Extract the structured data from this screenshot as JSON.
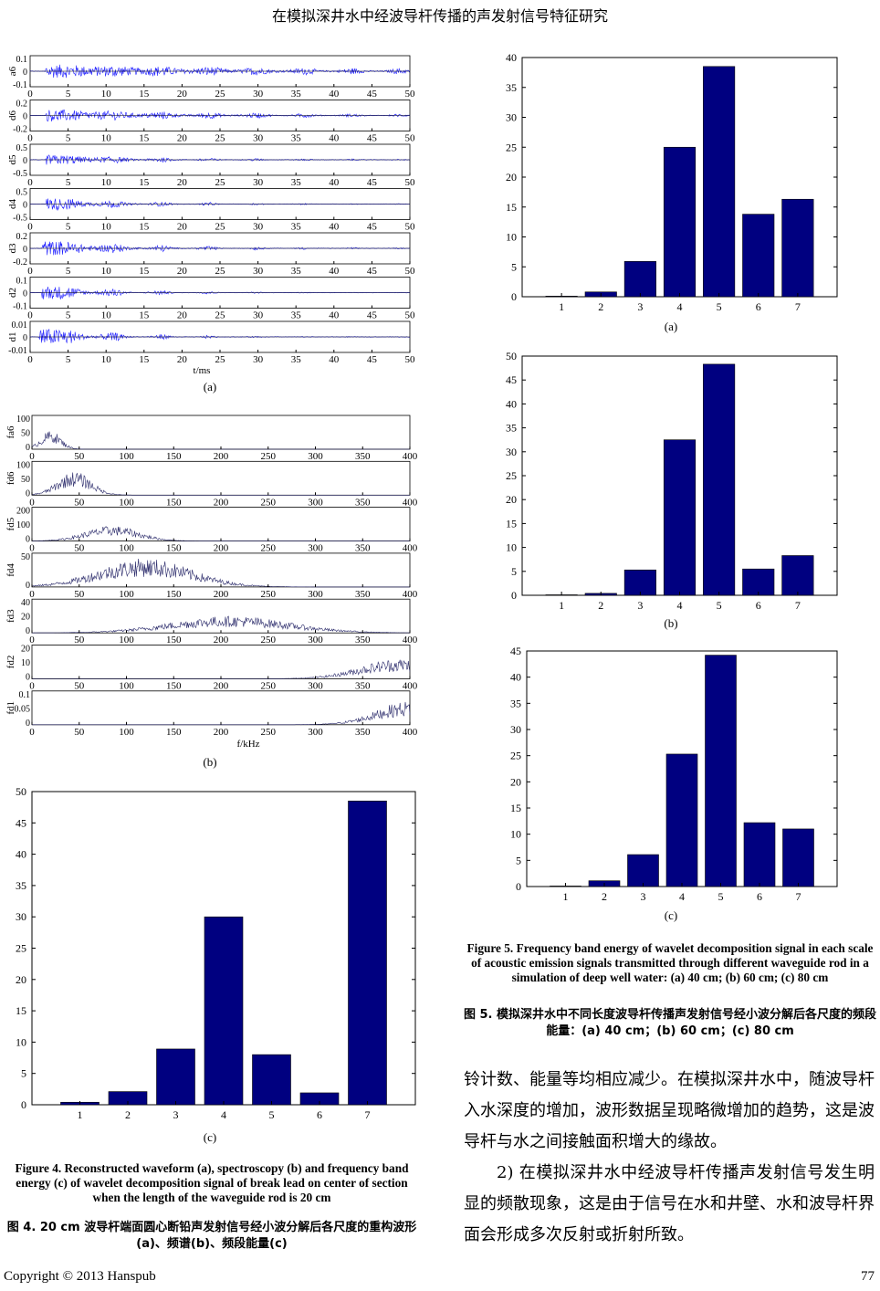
{
  "header": {
    "title": "在模拟深井水中经波导杆传播的声发射信号特征研究"
  },
  "footer": {
    "copyright": "Copyright © 2013 Hanspub",
    "page_number": "77"
  },
  "figure4": {
    "panel_a": {
      "label": "(a)",
      "xlabel": "t/ms",
      "x_ticks": [
        "0",
        "5",
        "10",
        "15",
        "20",
        "25",
        "30",
        "35",
        "40",
        "45",
        "50"
      ],
      "rows": [
        {
          "name": "a6",
          "ticks": [
            "0.1",
            "0",
            "-0.1"
          ],
          "amp": 0.45,
          "decay": 0.04,
          "start": 2
        },
        {
          "name": "d6",
          "ticks": [
            "0.2",
            "0",
            "-0.2"
          ],
          "amp": 0.4,
          "decay": 0.06,
          "start": 2
        },
        {
          "name": "d5",
          "ticks": [
            "0.5",
            "0",
            "-0.5"
          ],
          "amp": 0.35,
          "decay": 0.1,
          "start": 2
        },
        {
          "name": "d4",
          "ticks": [
            "0.5",
            "0",
            "-0.5"
          ],
          "amp": 0.45,
          "decay": 0.14,
          "start": 2
        },
        {
          "name": "d3",
          "ticks": [
            "0.2",
            "0",
            "-0.2"
          ],
          "amp": 0.55,
          "decay": 0.12,
          "start": 1.5
        },
        {
          "name": "d2",
          "ticks": [
            "0.1",
            "0",
            "-0.1"
          ],
          "amp": 0.55,
          "decay": 0.16,
          "start": 1.5
        },
        {
          "name": "d1",
          "ticks": [
            "0.01",
            "0",
            "-0.01"
          ],
          "amp": 0.7,
          "decay": 0.18,
          "start": 1.2
        }
      ]
    },
    "panel_b": {
      "label": "(b)",
      "xlabel": "f/kHz",
      "x_ticks": [
        "0",
        "50",
        "100",
        "150",
        "200",
        "250",
        "300",
        "350",
        "400"
      ],
      "rows": [
        {
          "name": "fa6",
          "ticks": [
            "100",
            "50",
            "0"
          ],
          "center": 20,
          "width": 15,
          "peak": 0.55
        },
        {
          "name": "fd6",
          "ticks": [
            "100",
            "50",
            "0"
          ],
          "center": 45,
          "width": 25,
          "peak": 0.7
        },
        {
          "name": "fd5",
          "ticks": [
            "200",
            "100",
            "0"
          ],
          "center": 85,
          "width": 40,
          "peak": 0.45
        },
        {
          "name": "fd4",
          "ticks": [
            "50",
            "0"
          ],
          "center": 120,
          "width": 70,
          "peak": 0.85
        },
        {
          "name": "fd3",
          "ticks": [
            "40",
            "20",
            "0"
          ],
          "center": 210,
          "width": 90,
          "peak": 0.5
        },
        {
          "name": "fd2",
          "ticks": [
            "20",
            "10",
            "0"
          ],
          "center": 390,
          "width": 60,
          "peak": 0.6
        },
        {
          "name": "fd1",
          "ticks": [
            "0.1",
            "0.05",
            "0"
          ],
          "center": 400,
          "width": 50,
          "peak": 0.7
        }
      ]
    },
    "panel_c": {
      "label": "(c)"
    },
    "caption_en": "Figure 4. Reconstructed waveform (a), spectroscopy (b) and frequency band energy (c) of wavelet decomposition signal of break lead on center of section when the length of the waveguide rod is 20 cm",
    "caption_zh": "图 4. 20 cm 波导杆端面圆心断铅声发射信号经小波分解后各尺度的重构波形(a)、频谱(b)、频段能量(c)"
  },
  "figure5": {
    "panel_a": {
      "label": "(a)"
    },
    "panel_b": {
      "label": "(b)"
    },
    "panel_c": {
      "label": "(c)"
    },
    "caption_en": "Figure 5. Frequency band energy of wavelet decomposition signal in each scale of acoustic emission signals transmitted through different waveguide rod in a simulation of deep well water: (a) 40 cm; (b) 60 cm; (c) 80 cm",
    "caption_zh": "图 5. 模拟深井水中不同长度波导杆传播声发射信号经小波分解后各尺度的频段能量：(a) 40 cm；(b) 60 cm；(c) 80 cm"
  },
  "body": {
    "para1": "铃计数、能量等均相应减少。在模拟深井水中，随波导杆入水深度的增加，波形数据呈现略微增加的趋势，这是波导杆与水之间接触面积增大的缘故。",
    "para2": "2) 在模拟深井水中经波导杆传播声发射信号发生明显的频散现象，这是由于信号在水和井壁、水和波导杆界面会形成多次反射或折射所致。"
  },
  "colors": {
    "bar": "#000080",
    "wave": "#1f1fff",
    "spectrum": "#2a2a6a"
  },
  "chart_data": [
    {
      "id": "fig4c",
      "type": "bar",
      "title": "",
      "categories": [
        "1",
        "2",
        "3",
        "4",
        "5",
        "6",
        "7"
      ],
      "values": [
        0.4,
        2.1,
        8.9,
        30.0,
        8.0,
        1.9,
        48.5
      ],
      "ylim": [
        0,
        50
      ],
      "yticks": [
        "0",
        "5",
        "10",
        "15",
        "20",
        "25",
        "30",
        "35",
        "40",
        "45",
        "50"
      ]
    },
    {
      "id": "fig5a",
      "type": "bar",
      "title": "",
      "categories": [
        "1",
        "2",
        "3",
        "4",
        "5",
        "6",
        "7"
      ],
      "values": [
        0.1,
        0.8,
        5.9,
        25.0,
        38.5,
        13.8,
        16.3
      ],
      "ylim": [
        0,
        40
      ],
      "yticks": [
        "0",
        "5",
        "10",
        "15",
        "20",
        "25",
        "30",
        "35",
        "40"
      ]
    },
    {
      "id": "fig5b",
      "type": "bar",
      "title": "",
      "categories": [
        "1",
        "2",
        "3",
        "4",
        "5",
        "6",
        "7"
      ],
      "values": [
        0.1,
        0.4,
        5.3,
        32.5,
        48.3,
        5.5,
        8.3
      ],
      "ylim": [
        0,
        50
      ],
      "yticks": [
        "0",
        "5",
        "10",
        "15",
        "20",
        "25",
        "30",
        "35",
        "40",
        "45",
        "50"
      ]
    },
    {
      "id": "fig5c",
      "type": "bar",
      "title": "",
      "categories": [
        "1",
        "2",
        "3",
        "4",
        "5",
        "6",
        "7"
      ],
      "values": [
        0.1,
        1.1,
        6.1,
        25.3,
        44.2,
        12.2,
        11.0
      ],
      "ylim": [
        0,
        45
      ],
      "yticks": [
        "0",
        "5",
        "10",
        "15",
        "20",
        "25",
        "30",
        "35",
        "40",
        "45"
      ]
    }
  ]
}
